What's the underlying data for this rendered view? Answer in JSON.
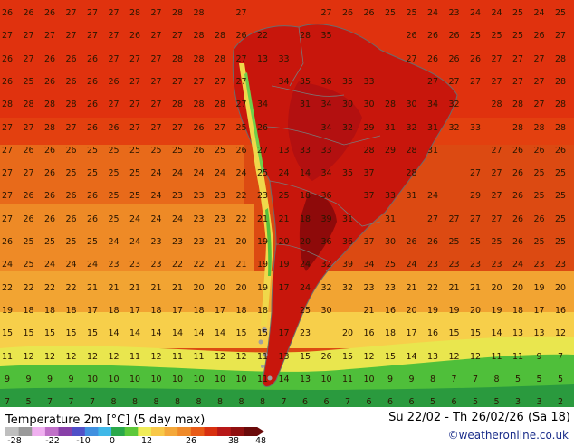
{
  "footer": {
    "title": "Temperature 2m [°C] (5 day max)",
    "date_range": "Su 22/02 - Th 26/02/26 (Sa 18)",
    "credit": "©weatheronline.co.uk",
    "scale_ticks": [
      "-28",
      "-22",
      "-10",
      "0",
      "12",
      "26",
      "38",
      "48"
    ],
    "scale_colors": [
      "#bfbfbf",
      "#9a9a9a",
      "#f0b0f0",
      "#c070c8",
      "#8840a8",
      "#5050c8",
      "#4090e0",
      "#40b8e8",
      "#2aa84a",
      "#5cc83a",
      "#f0ec58",
      "#f8c848",
      "#f4a83a",
      "#ef8a2a",
      "#e85a16",
      "#d83010",
      "#b81818",
      "#901010",
      "#6a0a0a"
    ]
  },
  "map": {
    "grid": [
      [
        "26",
        "26",
        "26",
        "27",
        "27",
        "27",
        "28",
        "27",
        "28",
        "28",
        "",
        "27",
        "",
        "",
        "",
        "27",
        "26",
        "26",
        "25",
        "25",
        "24",
        "23",
        "24",
        "24",
        "25",
        "24",
        "25",
        "26"
      ],
      [
        "27",
        "27",
        "27",
        "27",
        "27",
        "27",
        "26",
        "27",
        "27",
        "28",
        "28",
        "26",
        "22",
        "",
        "28",
        "35",
        "",
        "",
        "",
        "26",
        "26",
        "26",
        "25",
        "25",
        "25",
        "26",
        "27",
        ""
      ],
      [
        "26",
        "27",
        "26",
        "26",
        "26",
        "27",
        "27",
        "27",
        "28",
        "28",
        "28",
        "27",
        "13",
        "33",
        "",
        "",
        "",
        "",
        "",
        "27",
        "26",
        "26",
        "26",
        "27",
        "27",
        "27",
        "28",
        "28"
      ],
      [
        "26",
        "25",
        "26",
        "26",
        "26",
        "26",
        "27",
        "27",
        "27",
        "27",
        "27",
        "27",
        "",
        "34",
        "35",
        "36",
        "35",
        "33",
        "",
        "",
        "27",
        "27",
        "27",
        "27",
        "27",
        "27",
        "28",
        "28"
      ],
      [
        "28",
        "28",
        "28",
        "28",
        "26",
        "27",
        "27",
        "27",
        "28",
        "28",
        "28",
        "27",
        "34",
        "",
        "31",
        "34",
        "30",
        "30",
        "28",
        "30",
        "34",
        "32",
        "",
        "28",
        "28",
        "27",
        "28",
        "28"
      ],
      [
        "27",
        "27",
        "28",
        "27",
        "26",
        "26",
        "27",
        "27",
        "27",
        "26",
        "27",
        "25",
        "26",
        "",
        "",
        "34",
        "32",
        "29",
        "31",
        "32",
        "31",
        "32",
        "33",
        "",
        "28",
        "28",
        "28",
        "27"
      ],
      [
        "27",
        "26",
        "26",
        "26",
        "25",
        "25",
        "25",
        "25",
        "25",
        "26",
        "25",
        "26",
        "27",
        "13",
        "33",
        "33",
        "",
        "28",
        "29",
        "28",
        "31",
        "",
        "",
        "27",
        "26",
        "26",
        "26",
        "27"
      ],
      [
        "27",
        "27",
        "26",
        "25",
        "25",
        "25",
        "25",
        "24",
        "24",
        "24",
        "24",
        "24",
        "25",
        "24",
        "14",
        "34",
        "35",
        "37",
        "",
        "28",
        "",
        "",
        "27",
        "27",
        "26",
        "25",
        "25",
        "25"
      ],
      [
        "27",
        "26",
        "26",
        "26",
        "26",
        "25",
        "25",
        "24",
        "23",
        "23",
        "23",
        "22",
        "23",
        "25",
        "18",
        "36",
        "",
        "37",
        "33",
        "31",
        "24",
        "",
        "29",
        "27",
        "26",
        "25",
        "25",
        "25"
      ],
      [
        "27",
        "26",
        "26",
        "26",
        "26",
        "25",
        "24",
        "24",
        "24",
        "23",
        "23",
        "22",
        "21",
        "21",
        "18",
        "39",
        "31",
        "",
        "31",
        "",
        "27",
        "27",
        "27",
        "27",
        "26",
        "26",
        "25",
        "24"
      ],
      [
        "26",
        "25",
        "25",
        "25",
        "25",
        "24",
        "24",
        "23",
        "23",
        "23",
        "21",
        "20",
        "19",
        "20",
        "20",
        "36",
        "36",
        "37",
        "30",
        "26",
        "26",
        "25",
        "25",
        "25",
        "26",
        "25",
        "25",
        "24"
      ],
      [
        "24",
        "25",
        "24",
        "24",
        "24",
        "23",
        "23",
        "23",
        "22",
        "22",
        "21",
        "21",
        "19",
        "19",
        "24",
        "32",
        "39",
        "34",
        "25",
        "24",
        "23",
        "23",
        "23",
        "23",
        "24",
        "23",
        "23",
        "22"
      ],
      [
        "22",
        "22",
        "22",
        "22",
        "21",
        "21",
        "21",
        "21",
        "21",
        "20",
        "20",
        "20",
        "19",
        "17",
        "24",
        "32",
        "32",
        "23",
        "23",
        "21",
        "22",
        "21",
        "21",
        "20",
        "20",
        "19",
        "20",
        "20"
      ],
      [
        "19",
        "18",
        "18",
        "18",
        "17",
        "18",
        "17",
        "18",
        "17",
        "18",
        "17",
        "18",
        "18",
        "",
        "25",
        "30",
        "",
        "21",
        "16",
        "20",
        "19",
        "19",
        "20",
        "19",
        "18",
        "17",
        "16",
        "16"
      ],
      [
        "15",
        "15",
        "15",
        "15",
        "15",
        "14",
        "14",
        "14",
        "14",
        "14",
        "14",
        "15",
        "15",
        "17",
        "23",
        "",
        "20",
        "16",
        "18",
        "17",
        "16",
        "15",
        "15",
        "14",
        "13",
        "13",
        "12",
        "11"
      ],
      [
        "11",
        "12",
        "12",
        "12",
        "12",
        "12",
        "11",
        "12",
        "11",
        "11",
        "12",
        "12",
        "11",
        "13",
        "15",
        "26",
        "15",
        "12",
        "15",
        "14",
        "13",
        "12",
        "12",
        "11",
        "11",
        "9",
        "7",
        "6"
      ],
      [
        "9",
        "9",
        "9",
        "9",
        "10",
        "10",
        "10",
        "10",
        "10",
        "10",
        "10",
        "10",
        "11",
        "14",
        "13",
        "10",
        "11",
        "10",
        "9",
        "9",
        "8",
        "7",
        "7",
        "8",
        "5",
        "5",
        "5",
        "4"
      ],
      [
        "7",
        "5",
        "7",
        "7",
        "7",
        "8",
        "8",
        "8",
        "8",
        "8",
        "8",
        "8",
        "8",
        "7",
        "6",
        "6",
        "7",
        "6",
        "6",
        "6",
        "5",
        "6",
        "5",
        "5",
        "3",
        "3",
        "2",
        "3"
      ]
    ]
  }
}
